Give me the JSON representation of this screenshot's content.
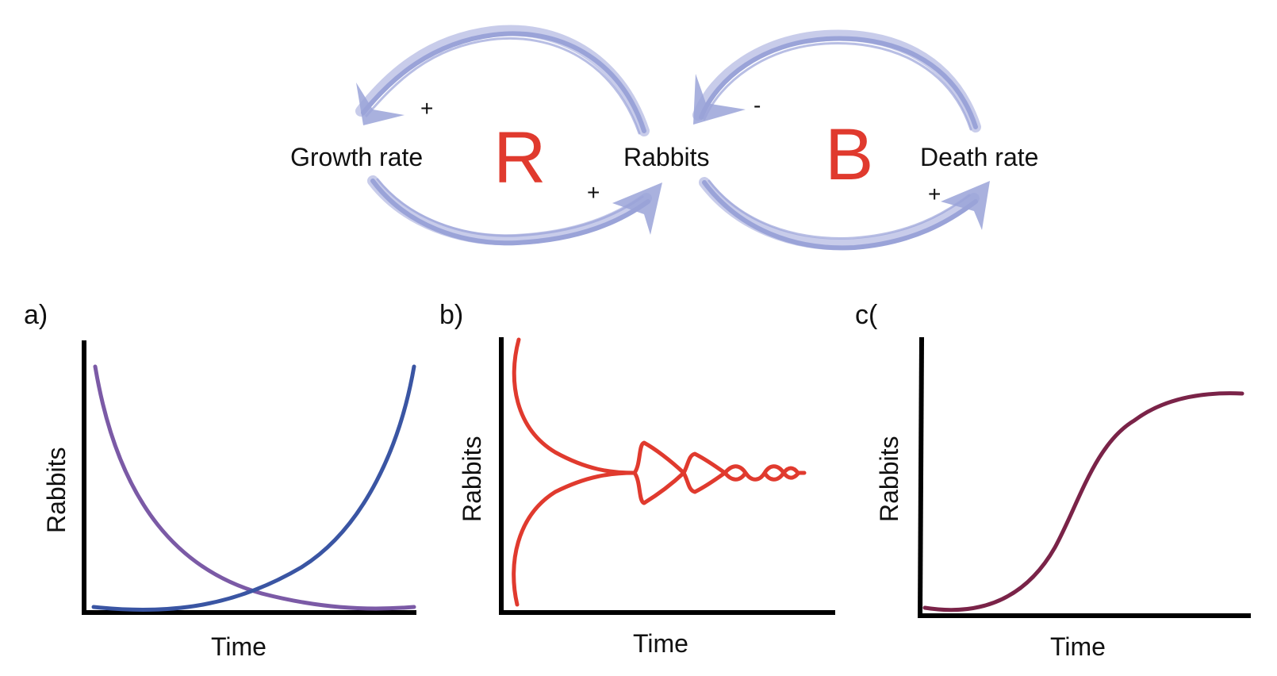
{
  "diagram": {
    "nodes": {
      "growth_rate": "Growth rate",
      "rabbits": "Rabbits",
      "death_rate": "Death rate"
    },
    "loops": {
      "reinforcing": "R",
      "balancing": "B"
    },
    "polarities": {
      "rabbits_to_growth": "+",
      "growth_to_rabbits": "+",
      "death_to_rabbits": "-",
      "rabbits_to_death": "+"
    },
    "colors": {
      "arrow": "#9aa3d8",
      "loop_letter": "#e03a2e"
    }
  },
  "panels": [
    {
      "label": "a)",
      "xlabel": "Time",
      "ylabel": "Rabbits",
      "curve_colors": [
        "#7b5aa6",
        "#3a55a3"
      ]
    },
    {
      "label": "b)",
      "xlabel": "Time",
      "ylabel": "Rabbits",
      "curve_colors": [
        "#e03a2e"
      ]
    },
    {
      "label": "c(",
      "xlabel": "Time",
      "ylabel": "Rabbits",
      "curve_colors": [
        "#7a2348"
      ]
    }
  ]
}
